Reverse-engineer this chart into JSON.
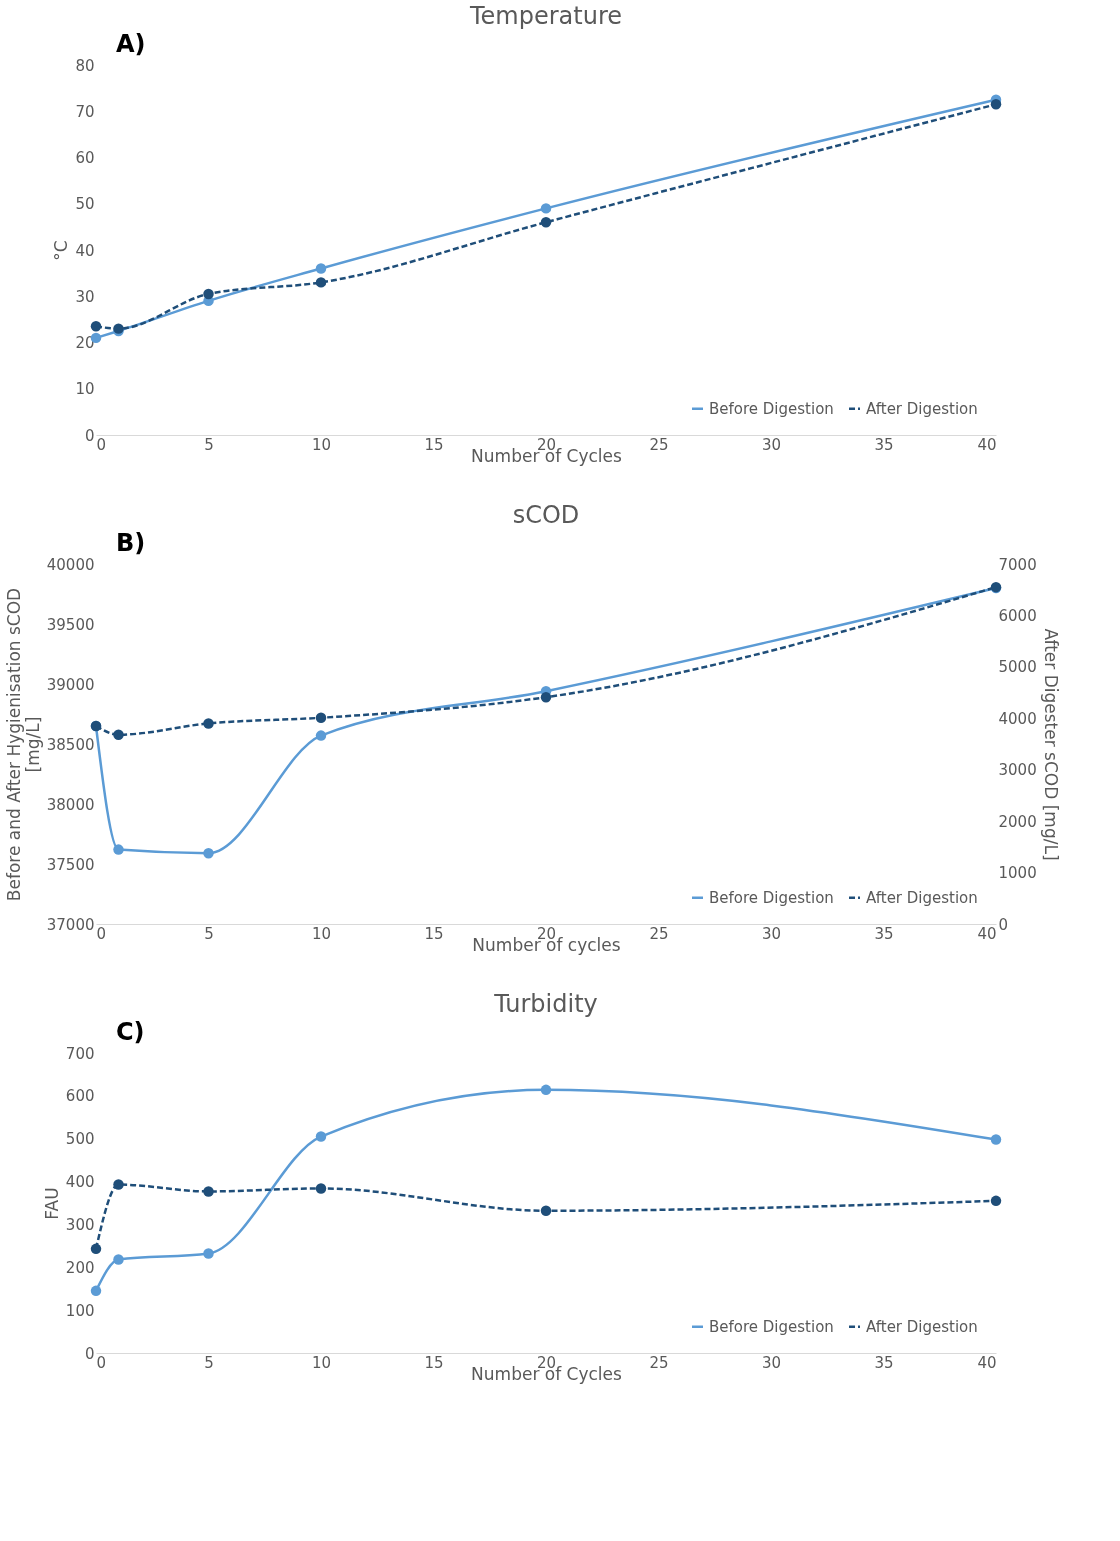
{
  "chart_data": [
    {
      "type": "line",
      "title": "Temperature",
      "xlabel": "Number of Cycles",
      "ylabel": "°C",
      "annotations": [
        "A)"
      ],
      "xlim": [
        0,
        40
      ],
      "xticks": [
        0,
        5,
        10,
        15,
        20,
        25,
        30,
        35,
        40
      ],
      "ylim": [
        0,
        80
      ],
      "yticks": [
        0,
        10,
        20,
        30,
        40,
        50,
        60,
        70,
        80
      ],
      "grid": false,
      "legend": "bottom right",
      "marker": "circle",
      "x": [
        0,
        1,
        5,
        10,
        20,
        40
      ],
      "series": [
        {
          "name": "Before Digestion",
          "color": "#5b9bd5",
          "line_style": "solid",
          "values": [
            21,
            22.5,
            29,
            36,
            49,
            72.5
          ]
        },
        {
          "name": "After Digestion",
          "color": "#1f4e79",
          "line_style": "dashed",
          "values": [
            23.5,
            23,
            30.5,
            33,
            46,
            71.5
          ]
        }
      ]
    },
    {
      "type": "line",
      "title": "sCOD",
      "xlabel": "Number of cycles",
      "ylabel": "Before and After Hygienisation sCOD [mg/L]",
      "y2label": "After Digester sCOD [mg/L]",
      "annotations": [
        "B)"
      ],
      "xlim": [
        0,
        40
      ],
      "xticks": [
        0,
        5,
        10,
        15,
        20,
        25,
        30,
        35,
        40
      ],
      "ylim": [
        37000,
        40000
      ],
      "yticks": [
        37000,
        37500,
        38000,
        38500,
        39000,
        39500,
        40000
      ],
      "y2lim": [
        0,
        7000
      ],
      "y2ticks": [
        0,
        1000,
        2000,
        3000,
        4000,
        5000,
        6000,
        7000
      ],
      "grid": false,
      "legend": "bottom right",
      "marker": "circle",
      "x": [
        0,
        1,
        5,
        10,
        20,
        40
      ],
      "series": [
        {
          "name": "Before Digestion",
          "color": "#5b9bd5",
          "line_style": "solid",
          "values": [
            38650,
            37620,
            37590,
            38570,
            38940,
            39800
          ]
        },
        {
          "name": "After Digestion",
          "color": "#1f4e79",
          "line_style": "dashed",
          "axis": "y2",
          "values": [
            3850,
            3680,
            3900,
            4010,
            4410,
            6550
          ]
        }
      ]
    },
    {
      "type": "line",
      "title": "Turbidity",
      "xlabel": "Number of Cycles",
      "ylabel": "FAU",
      "annotations": [
        "C)"
      ],
      "xlim": [
        0,
        40
      ],
      "xticks": [
        0,
        5,
        10,
        15,
        20,
        25,
        30,
        35,
        40
      ],
      "ylim": [
        0,
        700
      ],
      "yticks": [
        0,
        100,
        200,
        300,
        400,
        500,
        600,
        700
      ],
      "grid": false,
      "legend": "bottom right",
      "marker": "circle",
      "x": [
        0,
        1,
        5,
        10,
        20,
        40
      ],
      "series": [
        {
          "name": "Before Digestion",
          "color": "#5b9bd5",
          "line_style": "solid",
          "values": [
            145,
            218,
            232,
            505,
            614,
            498
          ]
        },
        {
          "name": "After Digestion",
          "color": "#1f4e79",
          "line_style": "dashed",
          "values": [
            243,
            393,
            377,
            384,
            332,
            355
          ]
        }
      ]
    }
  ]
}
